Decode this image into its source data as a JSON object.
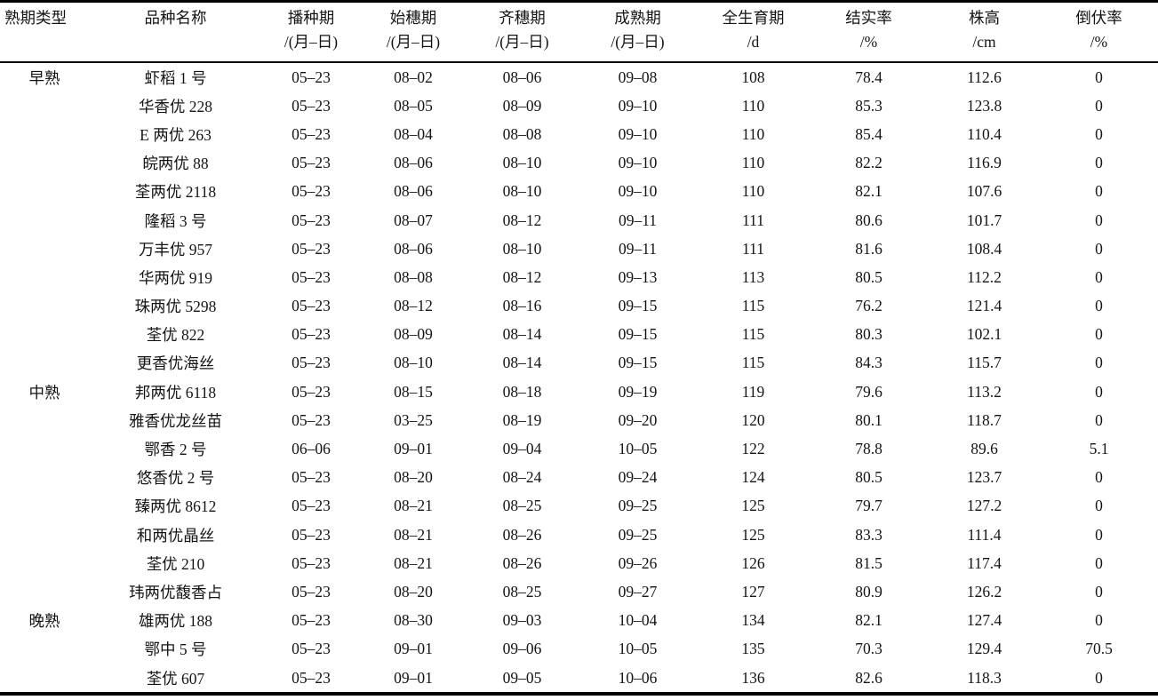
{
  "table": {
    "columns": [
      {
        "title": "熟期类型",
        "unit": ""
      },
      {
        "title": "品种名称",
        "unit": ""
      },
      {
        "title": "播种期",
        "unit": "/(月–日)"
      },
      {
        "title": "始穗期",
        "unit": "/(月–日)"
      },
      {
        "title": "齐穗期",
        "unit": "/(月–日)"
      },
      {
        "title": "成熟期",
        "unit": "/(月–日)"
      },
      {
        "title": "全生育期",
        "unit": "/d"
      },
      {
        "title": "结实率",
        "unit": "/%"
      },
      {
        "title": "株高",
        "unit": "/cm"
      },
      {
        "title": "倒伏率",
        "unit": "/%"
      }
    ],
    "rows": [
      [
        "早熟",
        "虾稻 1 号",
        "05–23",
        "08–02",
        "08–06",
        "09–08",
        "108",
        "78.4",
        "112.6",
        "0"
      ],
      [
        "",
        "华香优 228",
        "05–23",
        "08–05",
        "08–09",
        "09–10",
        "110",
        "85.3",
        "123.8",
        "0"
      ],
      [
        "",
        "E 两优 263",
        "05–23",
        "08–04",
        "08–08",
        "09–10",
        "110",
        "85.4",
        "110.4",
        "0"
      ],
      [
        "",
        "皖两优 88",
        "05–23",
        "08–06",
        "08–10",
        "09–10",
        "110",
        "82.2",
        "116.9",
        "0"
      ],
      [
        "",
        "荃两优 2118",
        "05–23",
        "08–06",
        "08–10",
        "09–10",
        "110",
        "82.1",
        "107.6",
        "0"
      ],
      [
        "",
        "隆稻 3 号",
        "05–23",
        "08–07",
        "08–12",
        "09–11",
        "111",
        "80.6",
        "101.7",
        "0"
      ],
      [
        "",
        "万丰优 957",
        "05–23",
        "08–06",
        "08–10",
        "09–11",
        "111",
        "81.6",
        "108.4",
        "0"
      ],
      [
        "",
        "华两优 919",
        "05–23",
        "08–08",
        "08–12",
        "09–13",
        "113",
        "80.5",
        "112.2",
        "0"
      ],
      [
        "",
        "珠两优 5298",
        "05–23",
        "08–12",
        "08–16",
        "09–15",
        "115",
        "76.2",
        "121.4",
        "0"
      ],
      [
        "",
        "荃优 822",
        "05–23",
        "08–09",
        "08–14",
        "09–15",
        "115",
        "80.3",
        "102.1",
        "0"
      ],
      [
        "",
        "更香优海丝",
        "05–23",
        "08–10",
        "08–14",
        "09–15",
        "115",
        "84.3",
        "115.7",
        "0"
      ],
      [
        "中熟",
        "邦两优 6118",
        "05–23",
        "08–15",
        "08–18",
        "09–19",
        "119",
        "79.6",
        "113.2",
        "0"
      ],
      [
        "",
        "雅香优龙丝苗",
        "05–23",
        "03–25",
        "08–19",
        "09–20",
        "120",
        "80.1",
        "118.7",
        "0"
      ],
      [
        "",
        "鄂香 2 号",
        "06–06",
        "09–01",
        "09–04",
        "10–05",
        "122",
        "78.8",
        "89.6",
        "5.1"
      ],
      [
        "",
        "悠香优 2 号",
        "05–23",
        "08–20",
        "08–24",
        "09–24",
        "124",
        "80.5",
        "123.7",
        "0"
      ],
      [
        "",
        "臻两优 8612",
        "05–23",
        "08–21",
        "08–25",
        "09–25",
        "125",
        "79.7",
        "127.2",
        "0"
      ],
      [
        "",
        "和两优晶丝",
        "05–23",
        "08–21",
        "08–26",
        "09–25",
        "125",
        "83.3",
        "111.4",
        "0"
      ],
      [
        "",
        "荃优 210",
        "05–23",
        "08–21",
        "08–26",
        "09–26",
        "126",
        "81.5",
        "117.4",
        "0"
      ],
      [
        "",
        "玮两优馥香占",
        "05–23",
        "08–20",
        "08–25",
        "09–27",
        "127",
        "80.9",
        "126.2",
        "0"
      ],
      [
        "晚熟",
        "雄两优 188",
        "05–23",
        "08–30",
        "09–03",
        "10–04",
        "134",
        "82.1",
        "127.4",
        "0"
      ],
      [
        "",
        "鄂中 5 号",
        "05–23",
        "09–01",
        "09–06",
        "10–05",
        "135",
        "70.3",
        "129.4",
        "70.5"
      ],
      [
        "",
        "荃优 607",
        "05–23",
        "09–01",
        "09–05",
        "10–06",
        "136",
        "82.6",
        "118.3",
        "0"
      ]
    ]
  }
}
